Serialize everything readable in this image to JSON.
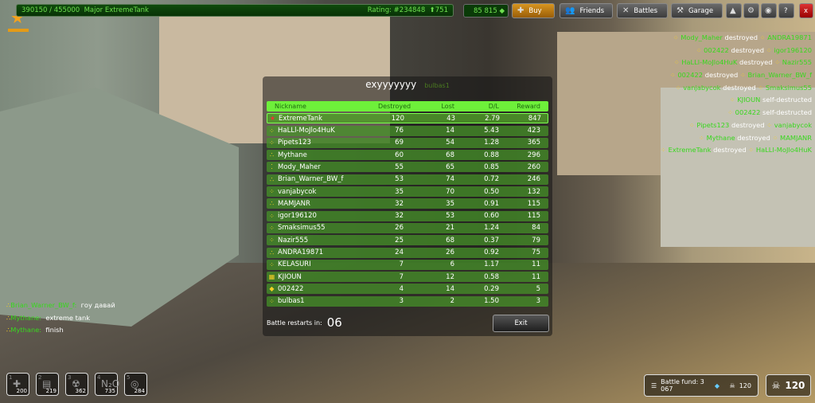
{
  "topbar": {
    "progress": "390150 / 455000",
    "rank_name": "Major ExtremeTank",
    "rating": "Rating: #234848",
    "rating_change": "⬆751",
    "crystals": "85 815",
    "xp_progress_fraction": 0.857
  },
  "nav": {
    "buy": "Buy",
    "friends": "Friends",
    "battles": "Battles",
    "garage": "Garage",
    "help": "?",
    "close": "x"
  },
  "scoreboard": {
    "title": "exyyyyyyy",
    "subtitle": "bulbas1",
    "headers": [
      "Nickname",
      "Destroyed",
      "Lost",
      "D/L",
      "Reward"
    ],
    "rows": [
      {
        "rank_icon": "star",
        "nick": "ExtremeTank",
        "destroyed": "120",
        "lost": "43",
        "dl": "2.79",
        "reward": "847"
      },
      {
        "rank_icon": "four-dots",
        "nick": "HaLLl-MoJlo4HuK",
        "destroyed": "76",
        "lost": "14",
        "dl": "5.43",
        "reward": "423"
      },
      {
        "rank_icon": "four-dots",
        "nick": "Pipets123",
        "destroyed": "69",
        "lost": "54",
        "dl": "1.28",
        "reward": "365"
      },
      {
        "rank_icon": "three-dots",
        "nick": "Mythane",
        "destroyed": "60",
        "lost": "68",
        "dl": "0.88",
        "reward": "296"
      },
      {
        "rank_icon": "two-dots",
        "nick": "Mody_Maher",
        "destroyed": "55",
        "lost": "65",
        "dl": "0.85",
        "reward": "260"
      },
      {
        "rank_icon": "three-dots",
        "nick": "Brian_Warner_BW_f",
        "destroyed": "53",
        "lost": "74",
        "dl": "0.72",
        "reward": "246"
      },
      {
        "rank_icon": "four-dots",
        "nick": "vanjabycok",
        "destroyed": "35",
        "lost": "70",
        "dl": "0.50",
        "reward": "132"
      },
      {
        "rank_icon": "three-dots",
        "nick": "MAMJANR",
        "destroyed": "32",
        "lost": "35",
        "dl": "0.91",
        "reward": "115"
      },
      {
        "rank_icon": "four-dots",
        "nick": "igor196120",
        "destroyed": "32",
        "lost": "53",
        "dl": "0.60",
        "reward": "115"
      },
      {
        "rank_icon": "four-dots",
        "nick": "Smaksimus55",
        "destroyed": "26",
        "lost": "21",
        "dl": "1.24",
        "reward": "84"
      },
      {
        "rank_icon": "four-dots",
        "nick": "Nazir555",
        "destroyed": "25",
        "lost": "68",
        "dl": "0.37",
        "reward": "79"
      },
      {
        "rank_icon": "three-dots",
        "nick": "ANDRA19871",
        "destroyed": "24",
        "lost": "26",
        "dl": "0.92",
        "reward": "75"
      },
      {
        "rank_icon": "four-dots",
        "nick": "KELASURI",
        "destroyed": "7",
        "lost": "6",
        "dl": "1.17",
        "reward": "11"
      },
      {
        "rank_icon": "block",
        "nick": "KJIOUN",
        "destroyed": "7",
        "lost": "12",
        "dl": "0.58",
        "reward": "11"
      },
      {
        "rank_icon": "diamond",
        "nick": "002422",
        "destroyed": "4",
        "lost": "14",
        "dl": "0.29",
        "reward": "5"
      },
      {
        "rank_icon": "four-dots",
        "nick": "bulbas1",
        "destroyed": "3",
        "lost": "2",
        "dl": "1.50",
        "reward": "3"
      }
    ],
    "restart_label": "Battle restarts in:",
    "restart_value": "06",
    "exit": "Exit"
  },
  "killfeed": [
    {
      "a": "Mody_Maher",
      "verb": "destroyed",
      "b": "ANDRA19871"
    },
    {
      "a": "002422",
      "verb": "destroyed",
      "b": "igor196120"
    },
    {
      "a": "HaLLl-MoJlo4HuK",
      "verb": "destroyed",
      "b": "Nazir555"
    },
    {
      "a": "002422",
      "verb": "destroyed",
      "b": "Brian_Warner_BW_f"
    },
    {
      "a": "vanjabycok",
      "verb": "destroyed",
      "b": "Smaksimus55"
    },
    {
      "a": "KJIOUN",
      "verb": "self-destructed",
      "b": ""
    },
    {
      "a": "002422",
      "verb": "self-destructed",
      "b": ""
    },
    {
      "a": "Pipets123",
      "verb": "destroyed",
      "b": "vanjabycok"
    },
    {
      "a": "Mythane",
      "verb": "destroyed",
      "b": "MAMJANR"
    },
    {
      "a": "ExtremeTank",
      "verb": "destroyed",
      "b": "HaLLl-MoJlo4HuK"
    }
  ],
  "chat": [
    {
      "user": "Brian_Warner_BW_f:",
      "msg": "гоу давай"
    },
    {
      "user": "Mythane:",
      "msg": "extreme tank"
    },
    {
      "user": "Mythane:",
      "msg": "finish"
    }
  ],
  "supplies": [
    {
      "key": "1",
      "icon": "repair-kit-icon",
      "count": "200"
    },
    {
      "key": "2",
      "icon": "armor-icon",
      "count": "219"
    },
    {
      "key": "3",
      "icon": "double-damage-icon",
      "count": "362"
    },
    {
      "key": "4",
      "icon": "nitro-icon",
      "count": "735"
    },
    {
      "key": "5",
      "icon": "mine-icon",
      "count": "284"
    }
  ],
  "fund": {
    "label": "Battle fund: 3 067",
    "kills": "120"
  },
  "score": "120"
}
